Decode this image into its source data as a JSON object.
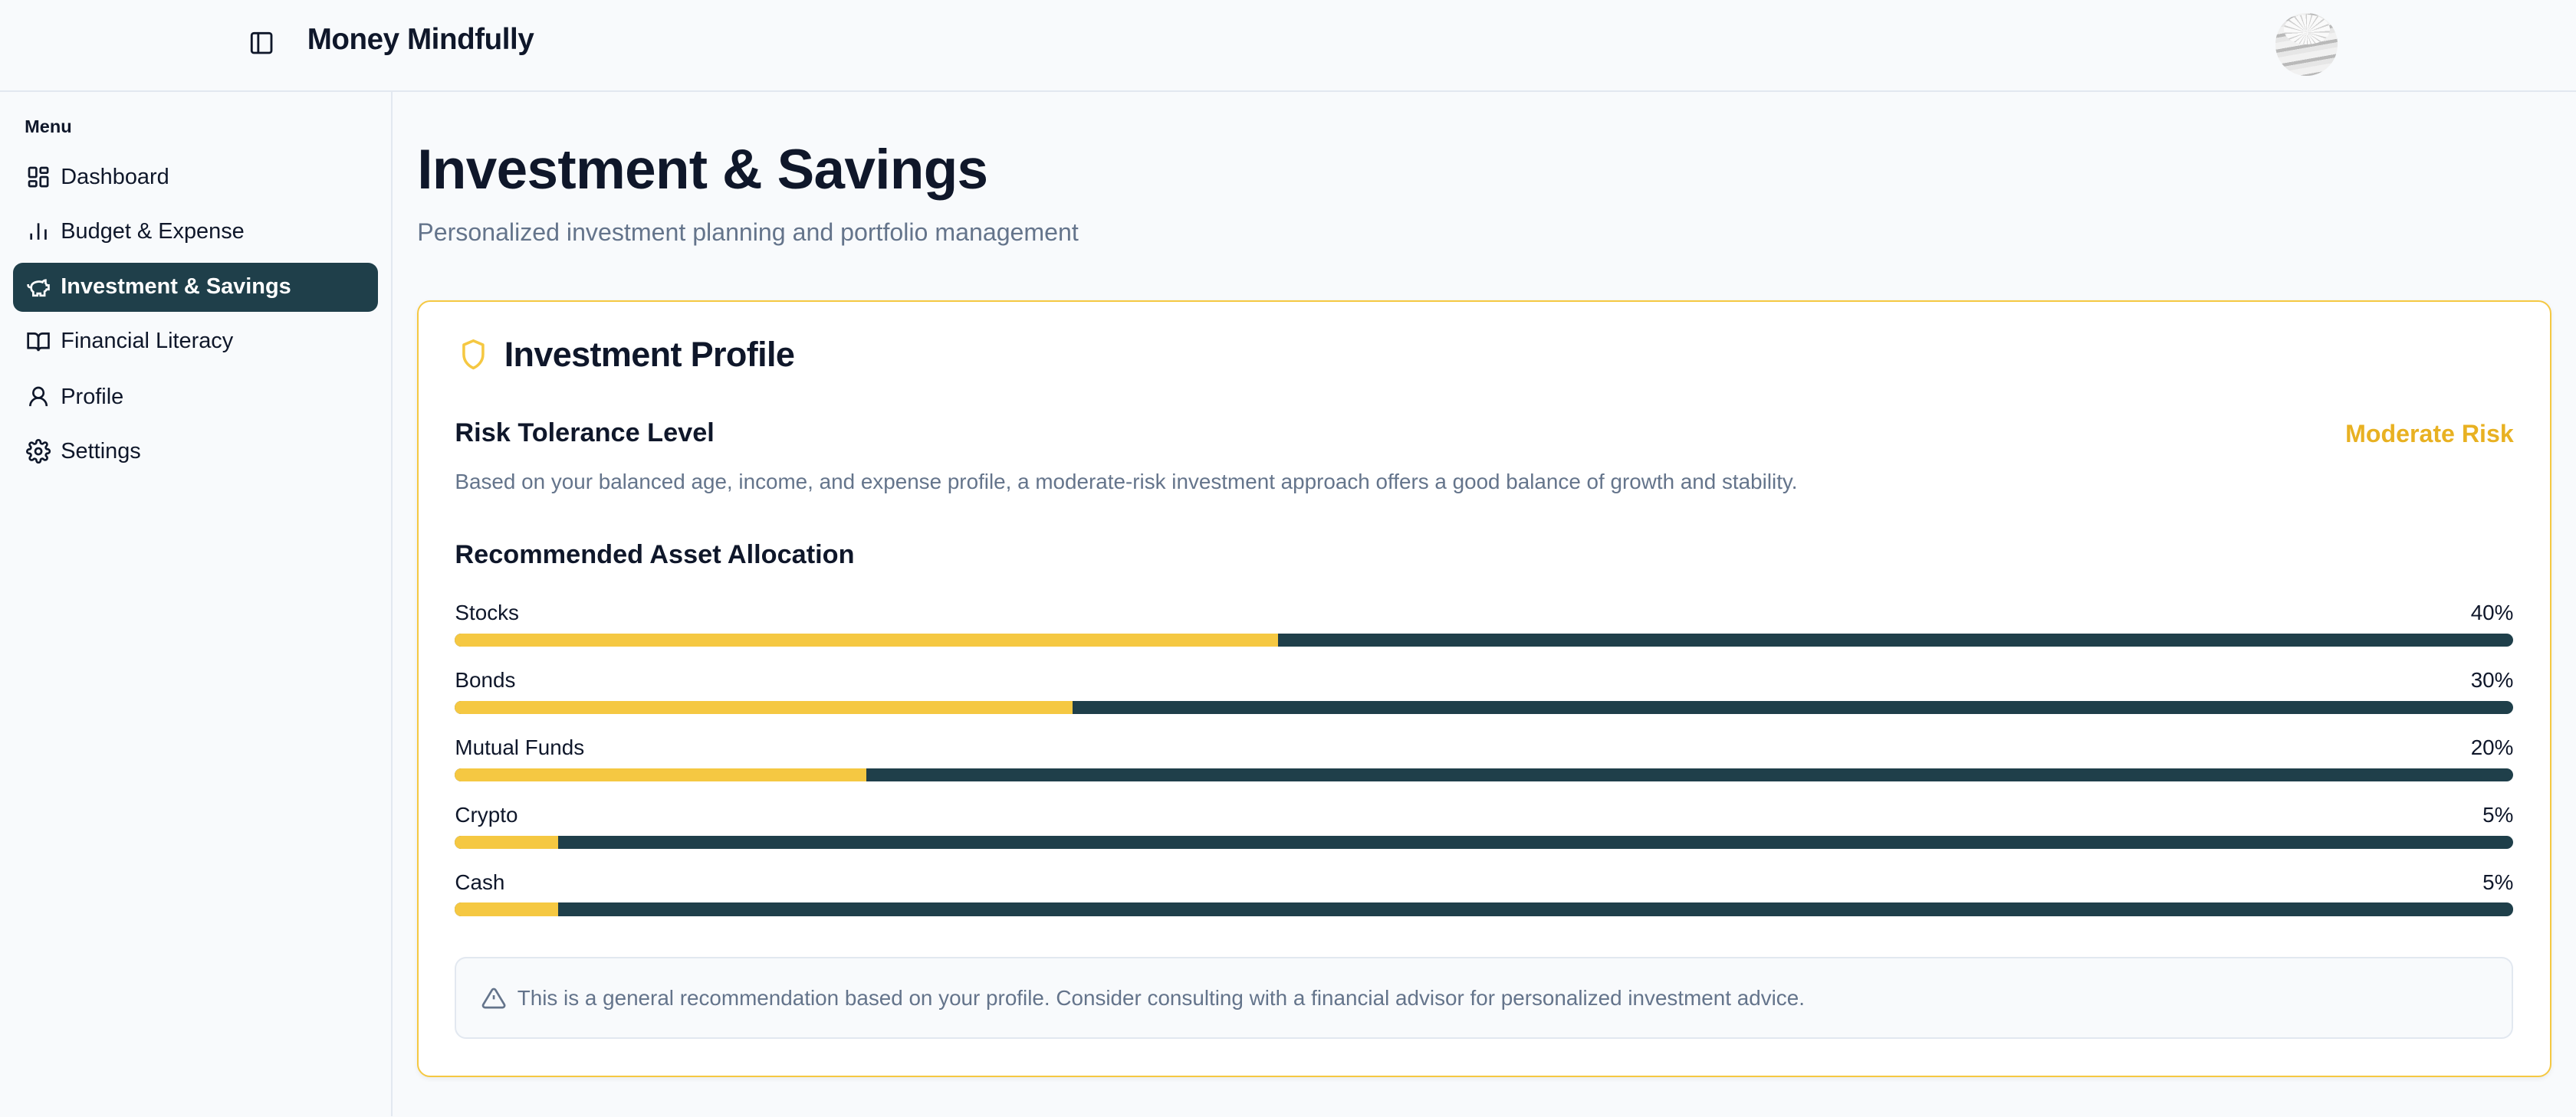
{
  "header": {
    "app_title": "Money Mindfully"
  },
  "sidebar": {
    "menu_label": "Menu",
    "items": [
      {
        "label": "Dashboard",
        "icon": "dashboard-icon"
      },
      {
        "label": "Budget & Expense",
        "icon": "bar-chart-icon"
      },
      {
        "label": "Investment & Savings",
        "icon": "piggy-bank-icon",
        "active": true
      },
      {
        "label": "Financial Literacy",
        "icon": "book-open-icon"
      },
      {
        "label": "Profile",
        "icon": "user-icon"
      },
      {
        "label": "Settings",
        "icon": "gear-icon"
      }
    ]
  },
  "page": {
    "title": "Investment & Savings",
    "subtitle": "Personalized investment planning and portfolio management"
  },
  "card": {
    "title": "Investment Profile",
    "risk_label": "Risk Tolerance Level",
    "risk_value": "Moderate Risk",
    "risk_description": "Based on your balanced age, income, and expense profile, a moderate-risk investment approach offers a good balance of growth and stability.",
    "allocation_title": "Recommended Asset Allocation",
    "allocations": [
      {
        "label": "Stocks",
        "percent_text": "40%",
        "percent": 40
      },
      {
        "label": "Bonds",
        "percent_text": "30%",
        "percent": 30
      },
      {
        "label": "Mutual Funds",
        "percent_text": "20%",
        "percent": 20
      },
      {
        "label": "Crypto",
        "percent_text": "5%",
        "percent": 5
      },
      {
        "label": "Cash",
        "percent_text": "5%",
        "percent": 5
      }
    ],
    "notice": "This is a general recommendation based on your profile. Consider consulting with a financial advisor for personalized investment advice."
  },
  "colors": {
    "accent": "#f5c842",
    "primary": "#1f3f4a",
    "risk": "#e8b122",
    "muted": "#64748b"
  }
}
